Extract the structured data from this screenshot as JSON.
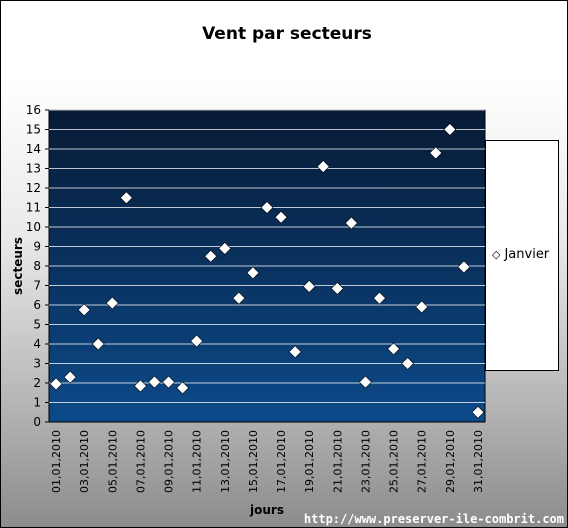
{
  "chart_data": {
    "type": "scatter",
    "title": "Vent par secteurs",
    "xlabel": "jours",
    "ylabel": "secteurs",
    "ylim": [
      0,
      16
    ],
    "yticks": [
      0,
      1,
      2,
      3,
      4,
      5,
      6,
      7,
      8,
      9,
      10,
      11,
      12,
      13,
      14,
      15,
      16
    ],
    "xticks": [
      "01,01,2010",
      "03,01,2010",
      "05,01,2010",
      "07,01,2010",
      "09,01,2010",
      "11,01,2010",
      "13,01,2010",
      "15,01,2010",
      "17,01,2010",
      "19,01,2010",
      "21,01,2010",
      "23,01,2010",
      "25,01,2010",
      "27,01,2010",
      "29,01,2010",
      "31,01,2010"
    ],
    "grid": true,
    "legend_position": "right",
    "series": [
      {
        "name": "Janvier",
        "marker": "diamond",
        "x": [
          "01,01,2010",
          "02,01,2010",
          "03,01,2010",
          "04,01,2010",
          "05,01,2010",
          "06,01,2010",
          "07,01,2010",
          "08,01,2010",
          "09,01,2010",
          "10,01,2010",
          "11,01,2010",
          "12,01,2010",
          "13,01,2010",
          "14,01,2010",
          "15,01,2010",
          "16,01,2010",
          "17,01,2010",
          "18,01,2010",
          "19,01,2010",
          "20,01,2010",
          "21,01,2010",
          "22,01,2010",
          "23,01,2010",
          "24,01,2010",
          "25,01,2010",
          "26,01,2010",
          "27,01,2010",
          "28,01,2010",
          "29,01,2010",
          "30,01,2010",
          "31,01,2010"
        ],
        "values": [
          1.95,
          2.3,
          5.75,
          4.0,
          6.1,
          11.5,
          1.85,
          2.05,
          2.05,
          1.75,
          4.15,
          8.5,
          8.9,
          6.35,
          7.65,
          11.0,
          10.5,
          3.6,
          6.95,
          13.1,
          6.85,
          10.2,
          2.05,
          6.35,
          3.75,
          3.0,
          5.9,
          13.8,
          15.0,
          7.95,
          0.5
        ]
      }
    ]
  },
  "colors": {
    "plot_top": "#071a35",
    "plot_bottom": "#0c4a8a",
    "gridline": "#ffffff",
    "marker_fill": "#ffffff"
  },
  "footer": "http://www.preserver-ile-combrit.com"
}
